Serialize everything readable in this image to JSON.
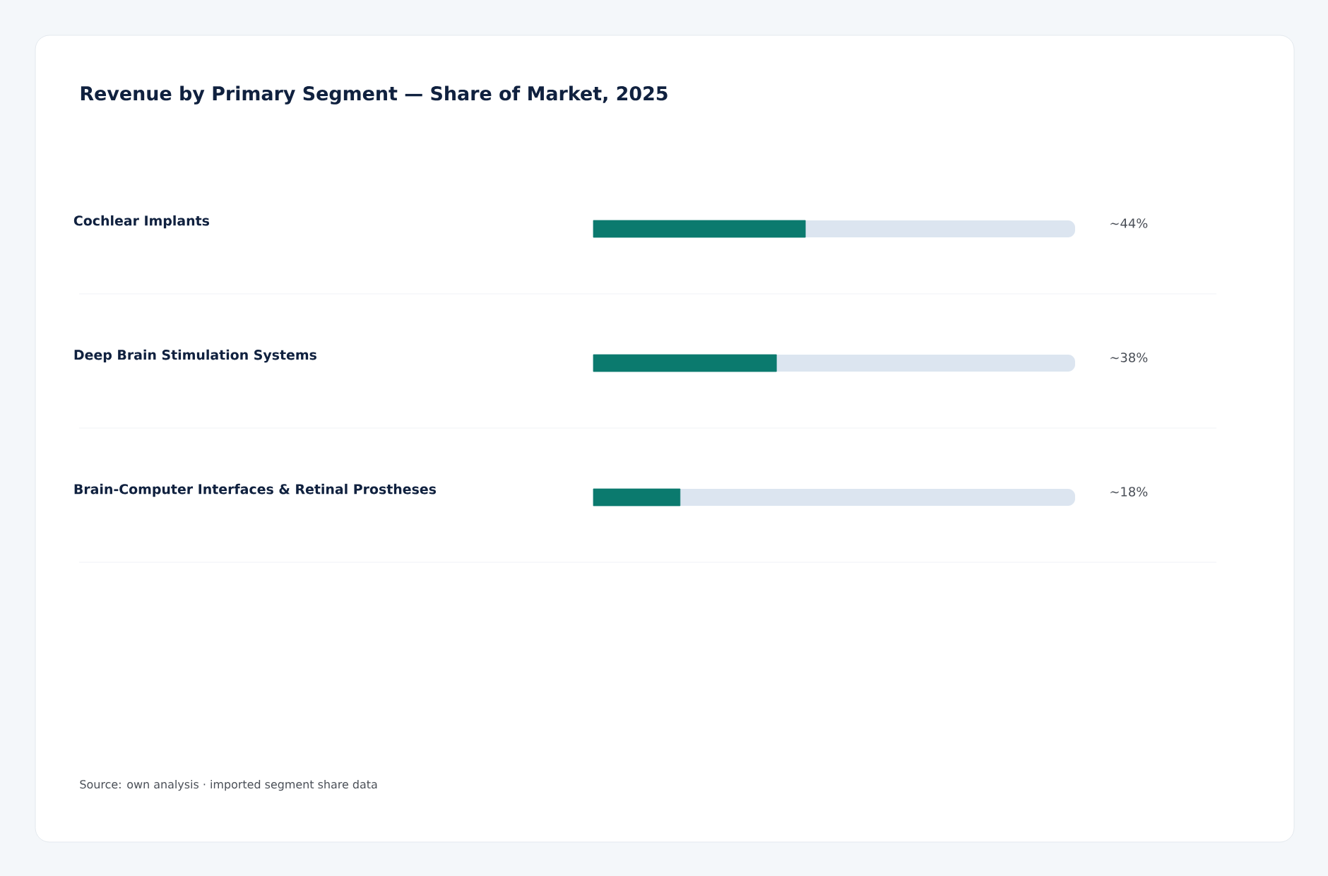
{
  "chart_data": {
    "type": "bar",
    "orientation": "horizontal",
    "title": "Revenue by Primary Segment — Share of Market, 2025",
    "categories": [
      "Cochlear Implants",
      "Deep Brain Stimulation Systems",
      "Brain-Computer Interfaces & Retinal Prostheses"
    ],
    "values": [
      44,
      38,
      18
    ],
    "color": "#0b7a6e",
    "value_labels": [
      "~44%",
      "~38%",
      "~18%"
    ],
    "xlim": [
      0,
      100
    ],
    "annotations": [
      "Source: own analysis · imported segment share data"
    ]
  }
}
